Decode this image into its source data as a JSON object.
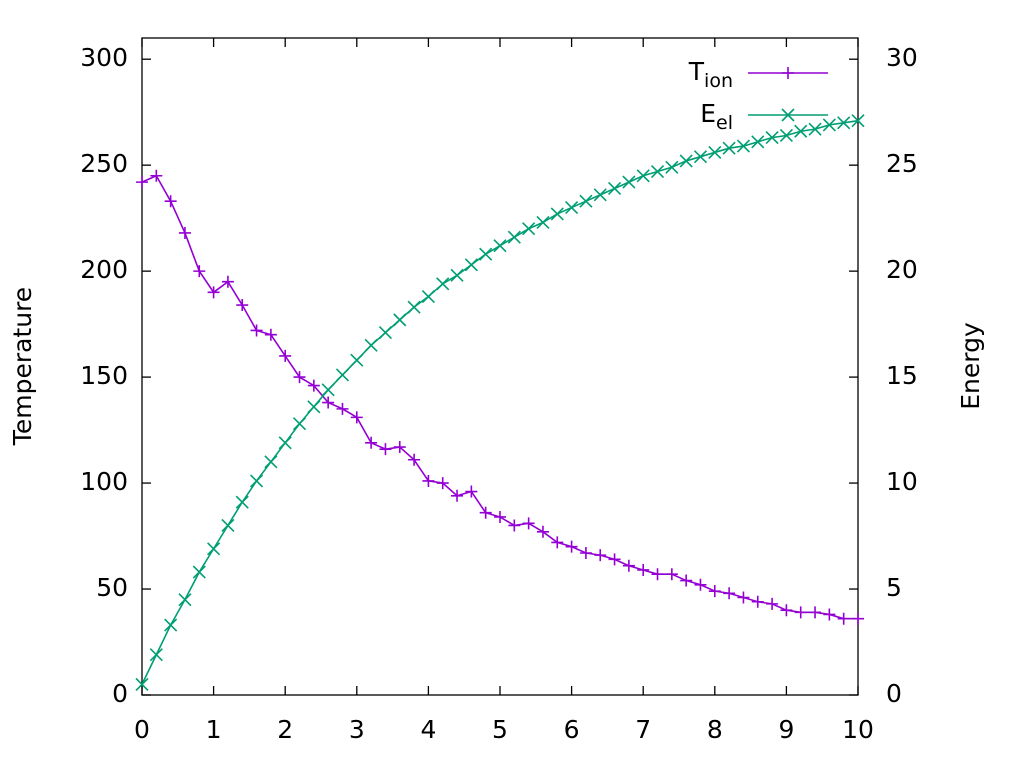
{
  "chart_data": {
    "type": "line",
    "x": [
      0,
      0.2,
      0.4,
      0.6,
      0.8,
      1,
      1.2,
      1.4,
      1.6,
      1.8,
      2,
      2.2,
      2.4,
      2.6,
      2.8,
      3,
      3.2,
      3.4,
      3.6,
      3.8,
      4,
      4.2,
      4.4,
      4.6,
      4.8,
      5,
      5.2,
      5.4,
      5.6,
      5.8,
      6,
      6.2,
      6.4,
      6.6,
      6.8,
      7,
      7.2,
      7.4,
      7.6,
      7.8,
      8,
      8.2,
      8.4,
      8.6,
      8.8,
      9,
      9.2,
      9.4,
      9.6,
      9.8,
      10
    ],
    "series": [
      {
        "name": "T",
        "subscript": "ion",
        "color": "#9400d3",
        "marker": "plus",
        "values": [
          242,
          245,
          233,
          218,
          200,
          190,
          195,
          184,
          172,
          170,
          160,
          150,
          146,
          138,
          135,
          131,
          119,
          116,
          117,
          111,
          101,
          100,
          94,
          96,
          86,
          84,
          80,
          81,
          77,
          72,
          70,
          67,
          66,
          64,
          61,
          59,
          57,
          57,
          54,
          52,
          49,
          48,
          46,
          44,
          43,
          40,
          39,
          39,
          38,
          36,
          36
        ]
      },
      {
        "name": "E",
        "subscript": "el",
        "color": "#009e73",
        "marker": "cross",
        "axis": "y2",
        "values": [
          0.5,
          1.9,
          3.3,
          4.5,
          5.8,
          6.9,
          8.0,
          9.1,
          10.1,
          11.0,
          11.9,
          12.8,
          13.6,
          14.4,
          15.1,
          15.8,
          16.5,
          17.1,
          17.7,
          18.3,
          18.8,
          19.4,
          19.8,
          20.3,
          20.8,
          21.2,
          21.6,
          22.0,
          22.3,
          22.7,
          23.0,
          23.3,
          23.6,
          23.9,
          24.2,
          24.5,
          24.7,
          24.9,
          25.2,
          25.4,
          25.6,
          25.8,
          25.9,
          26.1,
          26.3,
          26.4,
          26.6,
          26.7,
          26.9,
          27.0,
          27.1
        ]
      }
    ],
    "ylabel": "Temperature",
    "y2label": "Energy",
    "xlim": [
      0,
      10
    ],
    "xticks": [
      0,
      1,
      2,
      3,
      4,
      5,
      6,
      7,
      8,
      9,
      10
    ],
    "ylim": [
      0,
      310
    ],
    "yticks": [
      0,
      50,
      100,
      150,
      200,
      250,
      300
    ],
    "y2lim": [
      0,
      31
    ],
    "y2ticks": [
      0,
      5,
      10,
      15,
      20,
      25,
      30
    ],
    "legend": "top-right"
  }
}
